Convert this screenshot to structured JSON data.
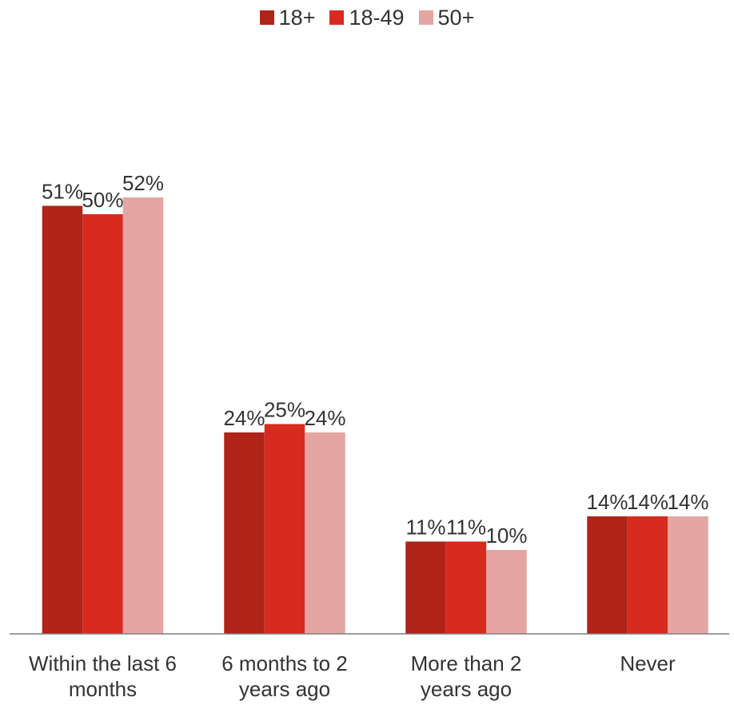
{
  "chart_data": {
    "type": "bar",
    "categories": [
      [
        "Within the last 6",
        "months"
      ],
      [
        "6 months to 2",
        "years ago"
      ],
      [
        "More than 2",
        "years ago"
      ],
      [
        "Never"
      ]
    ],
    "series": [
      {
        "name": "18+",
        "values": [
          51,
          24,
          11,
          14
        ],
        "labels": [
          "51%",
          "24%",
          "11%",
          "14%"
        ],
        "color": "#b02318"
      },
      {
        "name": "18-49",
        "values": [
          50,
          25,
          11,
          14
        ],
        "labels": [
          "50%",
          "25%",
          "11%",
          "14%"
        ],
        "color": "#d72b20"
      },
      {
        "name": "50+",
        "values": [
          52,
          24,
          10,
          14
        ],
        "labels": [
          "52%",
          "24%",
          "10%",
          "14%"
        ],
        "color": "#e4a5a3"
      }
    ],
    "ylim": [
      0,
      55
    ],
    "legend_position": "top-center",
    "grid": false
  }
}
